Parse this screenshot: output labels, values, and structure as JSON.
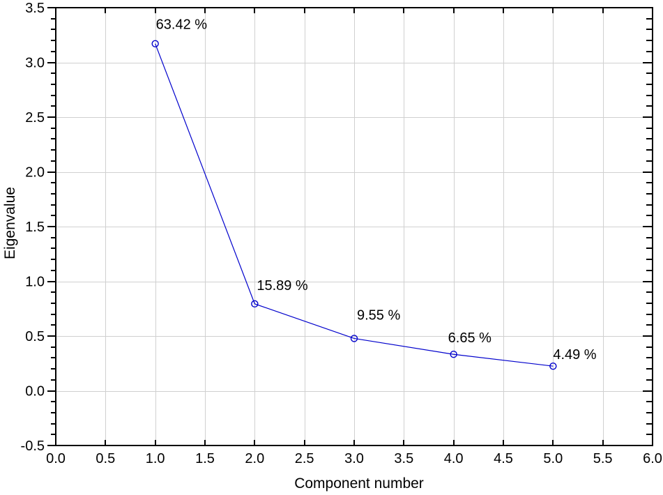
{
  "chart_data": {
    "type": "line",
    "title": "",
    "xlabel": "Component number",
    "ylabel": "Eigenvalue",
    "x": [
      1,
      2,
      3,
      4,
      5
    ],
    "y": [
      3.171,
      0.794,
      0.478,
      0.333,
      0.225
    ],
    "point_labels": [
      "63.42 %",
      "15.89 %",
      "9.55 %",
      "6.65 %",
      "4.49 %"
    ],
    "xlim": [
      0.0,
      6.0
    ],
    "ylim": [
      -0.5,
      3.5
    ],
    "x_tick_step": 0.5,
    "y_tick_step": 0.5,
    "y_minor_tick_step": 0.1,
    "x_tick_labels": [
      "0.0",
      "0.5",
      "1.0",
      "1.5",
      "2.0",
      "2.5",
      "3.0",
      "3.5",
      "4.0",
      "4.5",
      "5.0",
      "5.5",
      "6.0"
    ],
    "y_tick_labels": [
      "-0.5",
      "0.0",
      "0.5",
      "1.0",
      "1.5",
      "2.0",
      "2.5",
      "3.0",
      "3.5"
    ],
    "grid": true,
    "legend_position": "none",
    "line_color": "#0000CC",
    "marker": "open-circle",
    "grid_color": "#D0D0D0",
    "axis_color": "#000000",
    "text_color": "#000000",
    "background_color": "#FFFFFF"
  }
}
